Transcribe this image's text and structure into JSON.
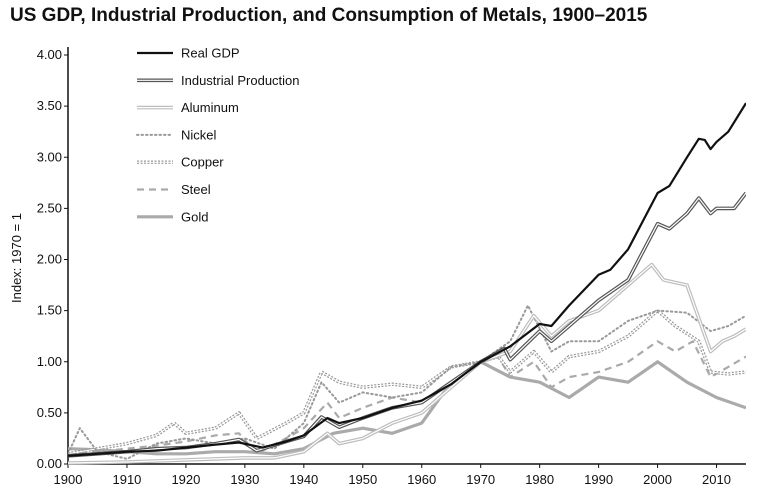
{
  "chart_data": {
    "type": "line",
    "title": "US GDP, Industrial Production, and Consumption of Metals, 1900–2015",
    "xlabel": "",
    "ylabel": "Index: 1970 = 1",
    "xlim": [
      1900,
      2015
    ],
    "ylim": [
      0,
      4
    ],
    "x_ticks": [
      1900,
      1910,
      1920,
      1930,
      1940,
      1950,
      1960,
      1970,
      1980,
      1990,
      2000,
      2010
    ],
    "y_ticks": [
      "0.00",
      "0.50",
      "1.00",
      "1.50",
      "2.00",
      "2.50",
      "3.00",
      "3.50",
      "4.00"
    ],
    "grid": false,
    "legend_position": "top-left",
    "series": [
      {
        "name": "Real GDP",
        "style": "solid-black",
        "color": "#111111",
        "points": [
          [
            1900,
            0.08
          ],
          [
            1905,
            0.1
          ],
          [
            1910,
            0.12
          ],
          [
            1915,
            0.13
          ],
          [
            1920,
            0.16
          ],
          [
            1925,
            0.19
          ],
          [
            1929,
            0.21
          ],
          [
            1933,
            0.16
          ],
          [
            1937,
            0.22
          ],
          [
            1940,
            0.28
          ],
          [
            1944,
            0.45
          ],
          [
            1946,
            0.4
          ],
          [
            1950,
            0.45
          ],
          [
            1955,
            0.55
          ],
          [
            1960,
            0.62
          ],
          [
            1965,
            0.78
          ],
          [
            1970,
            1.0
          ],
          [
            1975,
            1.15
          ],
          [
            1980,
            1.37
          ],
          [
            1982,
            1.35
          ],
          [
            1985,
            1.55
          ],
          [
            1990,
            1.85
          ],
          [
            1992,
            1.9
          ],
          [
            1995,
            2.1
          ],
          [
            2000,
            2.65
          ],
          [
            2002,
            2.72
          ],
          [
            2005,
            3.0
          ],
          [
            2007,
            3.18
          ],
          [
            2008,
            3.17
          ],
          [
            2009,
            3.08
          ],
          [
            2010,
            3.15
          ],
          [
            2012,
            3.25
          ],
          [
            2015,
            3.53
          ]
        ]
      },
      {
        "name": "Industrial Production",
        "style": "double-line",
        "color": "#555555",
        "points": [
          [
            1900,
            0.08
          ],
          [
            1905,
            0.1
          ],
          [
            1910,
            0.12
          ],
          [
            1915,
            0.15
          ],
          [
            1920,
            0.16
          ],
          [
            1925,
            0.2
          ],
          [
            1929,
            0.24
          ],
          [
            1932,
            0.13
          ],
          [
            1937,
            0.22
          ],
          [
            1940,
            0.27
          ],
          [
            1943,
            0.46
          ],
          [
            1946,
            0.36
          ],
          [
            1950,
            0.45
          ],
          [
            1955,
            0.55
          ],
          [
            1960,
            0.6
          ],
          [
            1965,
            0.8
          ],
          [
            1970,
            1.0
          ],
          [
            1974,
            1.13
          ],
          [
            1975,
            1.02
          ],
          [
            1980,
            1.3
          ],
          [
            1982,
            1.2
          ],
          [
            1985,
            1.35
          ],
          [
            1990,
            1.6
          ],
          [
            1995,
            1.8
          ],
          [
            2000,
            2.35
          ],
          [
            2002,
            2.3
          ],
          [
            2005,
            2.45
          ],
          [
            2007,
            2.6
          ],
          [
            2009,
            2.45
          ],
          [
            2010,
            2.5
          ],
          [
            2013,
            2.5
          ],
          [
            2015,
            2.65
          ]
        ]
      },
      {
        "name": "Aluminum",
        "style": "double-light",
        "color": "#bdbdbd",
        "points": [
          [
            1900,
            0.01
          ],
          [
            1910,
            0.02
          ],
          [
            1920,
            0.04
          ],
          [
            1930,
            0.06
          ],
          [
            1935,
            0.06
          ],
          [
            1940,
            0.12
          ],
          [
            1944,
            0.3
          ],
          [
            1946,
            0.2
          ],
          [
            1950,
            0.25
          ],
          [
            1955,
            0.4
          ],
          [
            1960,
            0.5
          ],
          [
            1965,
            0.75
          ],
          [
            1970,
            1.0
          ],
          [
            1975,
            1.1
          ],
          [
            1979,
            1.45
          ],
          [
            1982,
            1.25
          ],
          [
            1985,
            1.4
          ],
          [
            1990,
            1.5
          ],
          [
            1995,
            1.75
          ],
          [
            1999,
            1.95
          ],
          [
            2001,
            1.8
          ],
          [
            2005,
            1.75
          ],
          [
            2009,
            1.1
          ],
          [
            2011,
            1.2
          ],
          [
            2013,
            1.25
          ],
          [
            2015,
            1.32
          ]
        ]
      },
      {
        "name": "Nickel",
        "style": "dotted",
        "color": "#888888",
        "points": [
          [
            1900,
            0.1
          ],
          [
            1902,
            0.35
          ],
          [
            1905,
            0.12
          ],
          [
            1910,
            0.05
          ],
          [
            1915,
            0.2
          ],
          [
            1920,
            0.25
          ],
          [
            1925,
            0.2
          ],
          [
            1930,
            0.25
          ],
          [
            1935,
            0.15
          ],
          [
            1940,
            0.4
          ],
          [
            1943,
            0.8
          ],
          [
            1946,
            0.6
          ],
          [
            1950,
            0.7
          ],
          [
            1955,
            0.65
          ],
          [
            1960,
            0.7
          ],
          [
            1965,
            0.95
          ],
          [
            1970,
            1.0
          ],
          [
            1975,
            1.2
          ],
          [
            1978,
            1.55
          ],
          [
            1982,
            1.1
          ],
          [
            1985,
            1.2
          ],
          [
            1990,
            1.2
          ],
          [
            1995,
            1.4
          ],
          [
            2000,
            1.5
          ],
          [
            2005,
            1.48
          ],
          [
            2009,
            1.3
          ],
          [
            2012,
            1.35
          ],
          [
            2015,
            1.45
          ]
        ]
      },
      {
        "name": "Copper",
        "style": "double-dotted",
        "color": "#888888",
        "points": [
          [
            1900,
            0.1
          ],
          [
            1905,
            0.15
          ],
          [
            1910,
            0.2
          ],
          [
            1915,
            0.28
          ],
          [
            1918,
            0.4
          ],
          [
            1920,
            0.3
          ],
          [
            1925,
            0.35
          ],
          [
            1929,
            0.5
          ],
          [
            1932,
            0.25
          ],
          [
            1937,
            0.4
          ],
          [
            1940,
            0.5
          ],
          [
            1943,
            0.9
          ],
          [
            1946,
            0.8
          ],
          [
            1950,
            0.75
          ],
          [
            1955,
            0.78
          ],
          [
            1960,
            0.75
          ],
          [
            1965,
            0.95
          ],
          [
            1970,
            1.0
          ],
          [
            1973,
            1.05
          ],
          [
            1975,
            0.9
          ],
          [
            1979,
            1.1
          ],
          [
            1982,
            0.9
          ],
          [
            1985,
            1.05
          ],
          [
            1990,
            1.1
          ],
          [
            1995,
            1.25
          ],
          [
            2000,
            1.5
          ],
          [
            2003,
            1.35
          ],
          [
            2007,
            1.2
          ],
          [
            2009,
            0.9
          ],
          [
            2012,
            0.88
          ],
          [
            2015,
            0.9
          ]
        ]
      },
      {
        "name": "Steel",
        "style": "dashed",
        "color": "#aaaaaa",
        "points": [
          [
            1900,
            0.1
          ],
          [
            1905,
            0.12
          ],
          [
            1910,
            0.15
          ],
          [
            1915,
            0.18
          ],
          [
            1920,
            0.22
          ],
          [
            1925,
            0.28
          ],
          [
            1929,
            0.3
          ],
          [
            1932,
            0.1
          ],
          [
            1937,
            0.25
          ],
          [
            1940,
            0.35
          ],
          [
            1944,
            0.6
          ],
          [
            1946,
            0.45
          ],
          [
            1950,
            0.55
          ],
          [
            1955,
            0.65
          ],
          [
            1960,
            0.6
          ],
          [
            1965,
            0.8
          ],
          [
            1970,
            1.0
          ],
          [
            1973,
            1.05
          ],
          [
            1975,
            0.85
          ],
          [
            1979,
            1.0
          ],
          [
            1982,
            0.75
          ],
          [
            1985,
            0.85
          ],
          [
            1990,
            0.9
          ],
          [
            1995,
            1.0
          ],
          [
            2000,
            1.2
          ],
          [
            2003,
            1.1
          ],
          [
            2006,
            1.2
          ],
          [
            2009,
            0.85
          ],
          [
            2012,
            0.95
          ],
          [
            2015,
            1.05
          ]
        ]
      },
      {
        "name": "Gold",
        "style": "thick-light",
        "color": "#aaaaaa",
        "points": [
          [
            1900,
            0.15
          ],
          [
            1905,
            0.14
          ],
          [
            1910,
            0.12
          ],
          [
            1915,
            0.1
          ],
          [
            1920,
            0.1
          ],
          [
            1925,
            0.12
          ],
          [
            1930,
            0.12
          ],
          [
            1935,
            0.1
          ],
          [
            1940,
            0.15
          ],
          [
            1945,
            0.3
          ],
          [
            1950,
            0.35
          ],
          [
            1955,
            0.3
          ],
          [
            1960,
            0.4
          ],
          [
            1965,
            0.8
          ],
          [
            1970,
            1.0
          ],
          [
            1975,
            0.85
          ],
          [
            1980,
            0.8
          ],
          [
            1985,
            0.65
          ],
          [
            1990,
            0.85
          ],
          [
            1995,
            0.8
          ],
          [
            2000,
            1.0
          ],
          [
            2005,
            0.8
          ],
          [
            2010,
            0.65
          ],
          [
            2015,
            0.55
          ]
        ]
      }
    ]
  }
}
